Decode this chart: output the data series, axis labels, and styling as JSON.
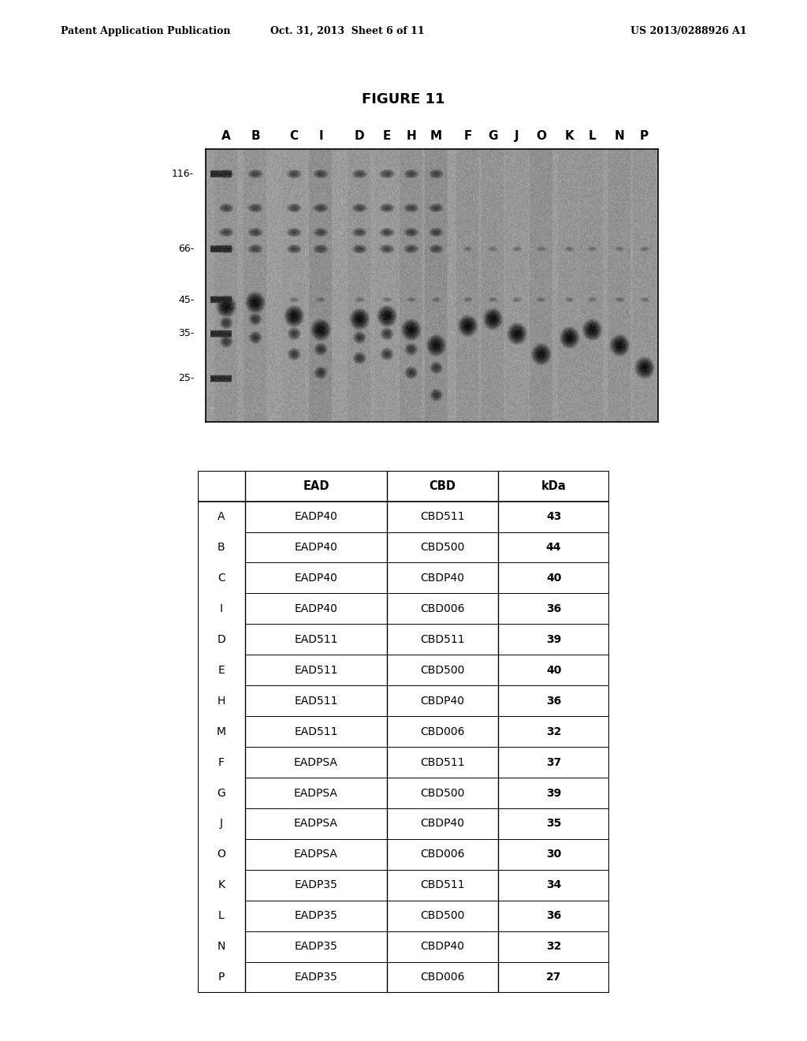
{
  "header_left": "Patent Application Publication",
  "header_center": "Oct. 31, 2013  Sheet 6 of 11",
  "header_right": "US 2013/0288926 A1",
  "figure_title": "FIGURE 11",
  "gel_labels": [
    "A",
    "B",
    "C",
    "I",
    "D",
    "E",
    "H",
    "M",
    "F",
    "G",
    "J",
    "O",
    "K",
    "L",
    "N",
    "P"
  ],
  "gel_markers": [
    "116",
    "66",
    "45",
    "35",
    "25"
  ],
  "gel_marker_kda": [
    116,
    66,
    45,
    35,
    25
  ],
  "table_headers": [
    "EAD",
    "CBD",
    "kDa"
  ],
  "table_rows": [
    [
      "A",
      "EADP40",
      "CBD511",
      "43"
    ],
    [
      "B",
      "EADP40",
      "CBD500",
      "44"
    ],
    [
      "C",
      "EADP40",
      "CBDP40",
      "40"
    ],
    [
      "I",
      "EADP40",
      "CBD006",
      "36"
    ],
    [
      "D",
      "EAD511",
      "CBD511",
      "39"
    ],
    [
      "E",
      "EAD511",
      "CBD500",
      "40"
    ],
    [
      "H",
      "EAD511",
      "CBDP40",
      "36"
    ],
    [
      "M",
      "EAD511",
      "CBD006",
      "32"
    ],
    [
      "F",
      "EADPSA",
      "CBD511",
      "37"
    ],
    [
      "G",
      "EADPSA",
      "CBD500",
      "39"
    ],
    [
      "J",
      "EADPSA",
      "CBDP40",
      "35"
    ],
    [
      "O",
      "EADPSA",
      "CBD006",
      "30"
    ],
    [
      "K",
      "EADP35",
      "CBD511",
      "34"
    ],
    [
      "L",
      "EADP35",
      "CBD500",
      "36"
    ],
    [
      "N",
      "EADP35",
      "CBDP40",
      "32"
    ],
    [
      "P",
      "EADP35",
      "CBD006",
      "27"
    ]
  ],
  "kda_values": [
    43,
    44,
    40,
    36,
    39,
    40,
    36,
    32,
    37,
    39,
    35,
    30,
    34,
    36,
    32,
    27
  ],
  "bg_color": "#ffffff",
  "header_fontsize": 9,
  "title_fontsize": 13,
  "table_fontsize": 10,
  "gel_label_fontsize": 11,
  "marker_fontsize": 9
}
